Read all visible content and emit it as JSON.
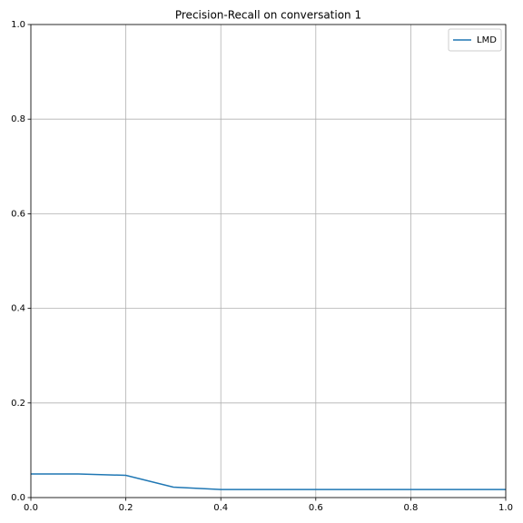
{
  "chart_data": {
    "type": "line",
    "title": "Precision-Recall on conversation 1",
    "x": [
      0,
      0.1,
      0.2,
      0.3,
      0.4,
      0.5,
      0.6,
      0.7,
      0.8,
      0.9,
      1.0
    ],
    "series": [
      {
        "name": "LMD",
        "color": "#1f77b4",
        "values": [
          0.05,
          0.05,
          0.047,
          0.022,
          0.017,
          0.017,
          0.017,
          0.017,
          0.017,
          0.017,
          0.017
        ]
      }
    ],
    "xlim": [
      0,
      1
    ],
    "ylim": [
      0,
      1
    ],
    "xticks": [
      {
        "value": 0,
        "label": "0.0"
      },
      0.2,
      0.4,
      0.6,
      0.8,
      {
        "value": 1,
        "label": "1.0"
      }
    ],
    "yticks": [
      {
        "value": 0,
        "label": "0.0"
      },
      0.2,
      0.4,
      0.6,
      0.8,
      {
        "value": 1,
        "label": "1.0"
      }
    ],
    "grid": true,
    "legend": "upper-right"
  }
}
